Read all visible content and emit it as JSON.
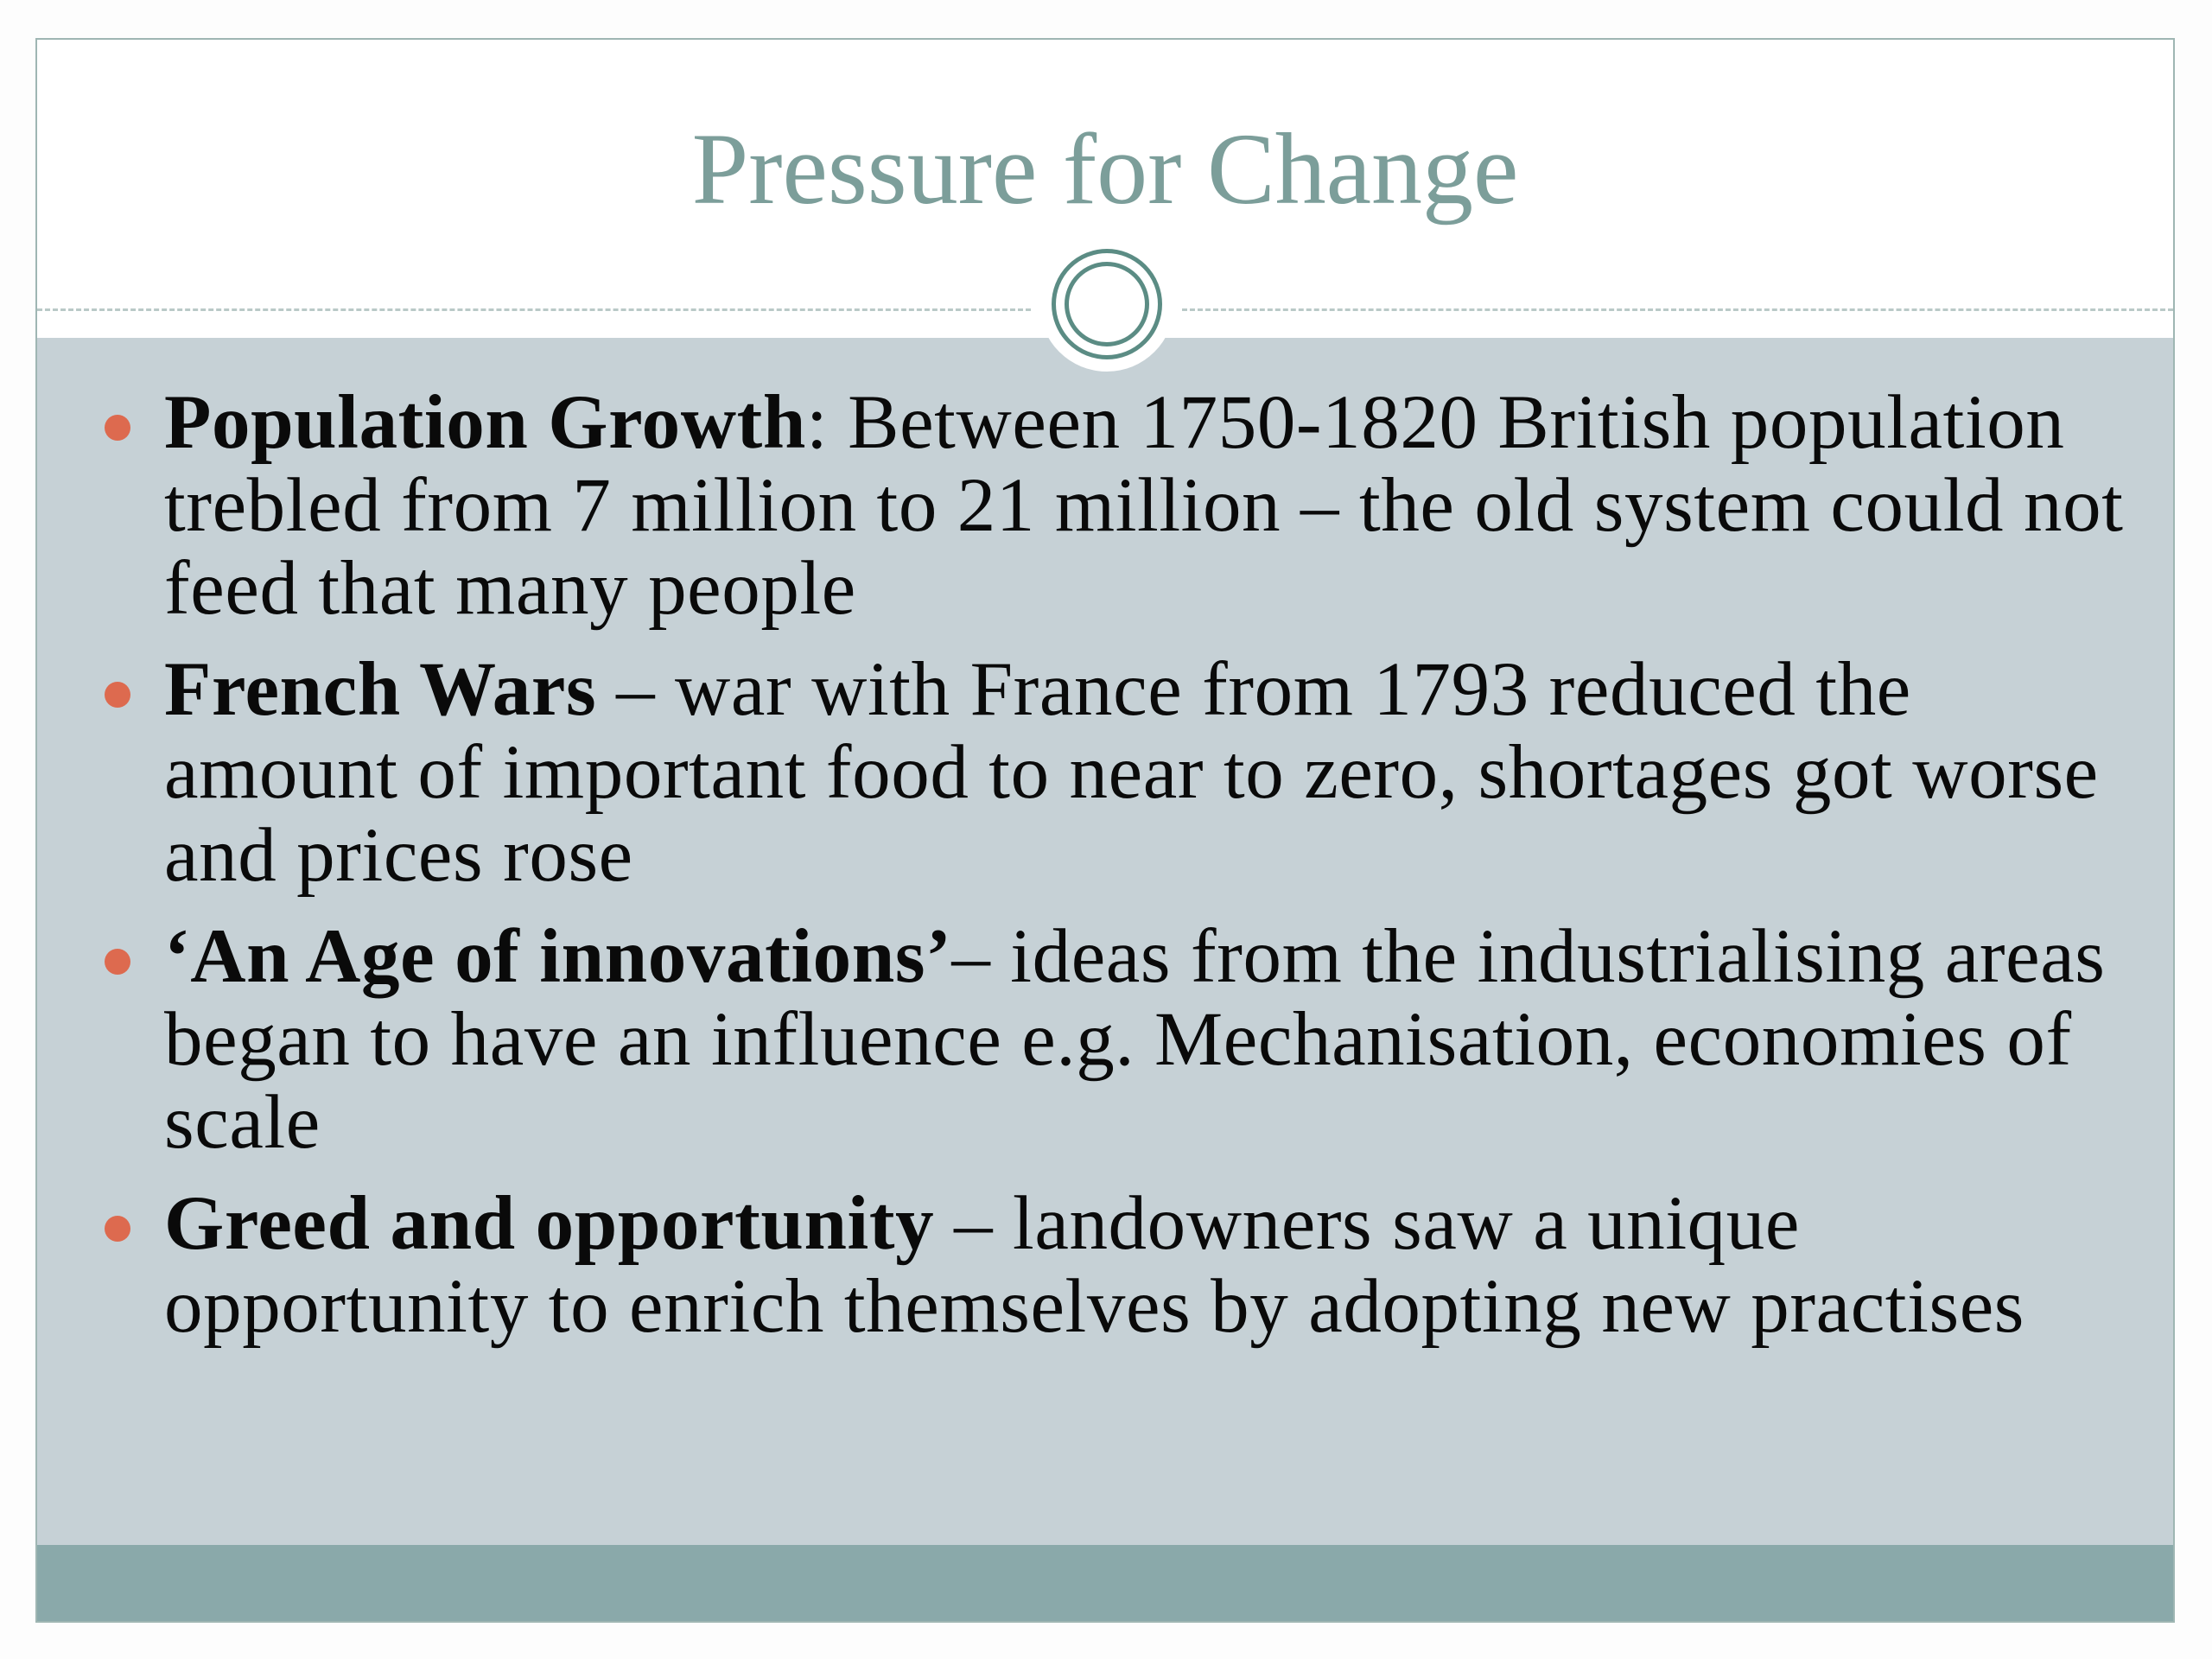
{
  "slide": {
    "title": "Pressure for Change",
    "colors": {
      "title": "#7c9e9a",
      "bullet": "#dd6a4f",
      "body_bg": "#c6d1d6",
      "footer": "#8aa9aa",
      "ring": "#5b8c84"
    },
    "bullets": [
      {
        "bold": "Population Growth",
        "text": ": Between 1750-1820 British population trebled from 7 million to 21 million – the old system could not feed that many people"
      },
      {
        "bold": "French Wars",
        "text": " – war with France from 1793 reduced the amount of important food to near to zero, shortages got worse and prices rose"
      },
      {
        "bold": "‘An Age of innovations’",
        "text": "– ideas from the industrialising areas began to have an influence e.g. Mechanisation, economies of scale"
      },
      {
        "bold": "Greed and opportunity",
        "text": " – landowners saw a unique opportunity to enrich themselves by adopting new practises"
      }
    ]
  }
}
